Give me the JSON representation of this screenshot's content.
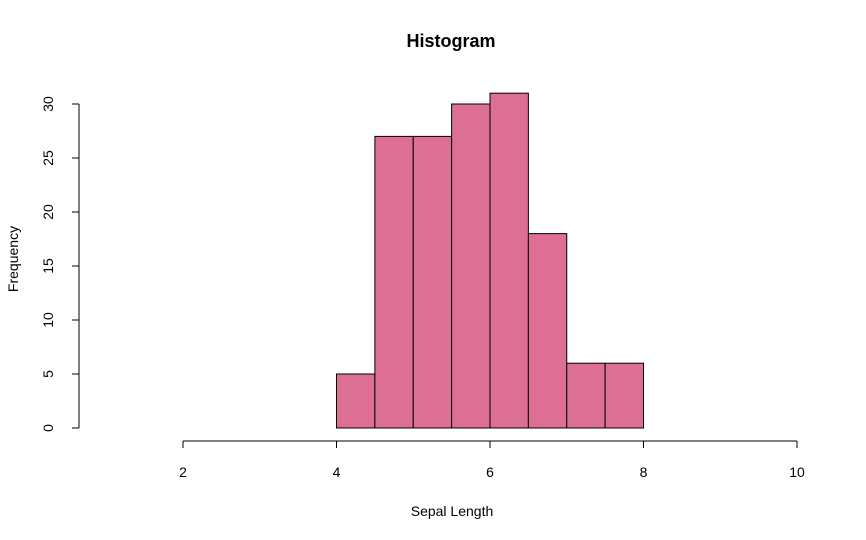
{
  "chart_data": {
    "type": "bar",
    "title": "Histogram",
    "xlabel": "Sepal Length",
    "ylabel": "Frequency",
    "bar_color": "#DC6F93",
    "bins": [
      {
        "x0": 4.0,
        "x1": 4.5,
        "count": 5
      },
      {
        "x0": 4.5,
        "x1": 5.0,
        "count": 27
      },
      {
        "x0": 5.0,
        "x1": 5.5,
        "count": 27
      },
      {
        "x0": 5.5,
        "x1": 6.0,
        "count": 30
      },
      {
        "x0": 6.0,
        "x1": 6.5,
        "count": 31
      },
      {
        "x0": 6.5,
        "x1": 7.0,
        "count": 18
      },
      {
        "x0": 7.0,
        "x1": 7.5,
        "count": 6
      },
      {
        "x0": 7.5,
        "x1": 8.0,
        "count": 6
      }
    ],
    "xlim": [
      2,
      10
    ],
    "ylim": [
      0,
      30
    ],
    "xticks": [
      2,
      4,
      6,
      8,
      10
    ],
    "yticks": [
      0,
      5,
      10,
      15,
      20,
      25,
      30
    ],
    "grid": false,
    "legend": "none"
  }
}
